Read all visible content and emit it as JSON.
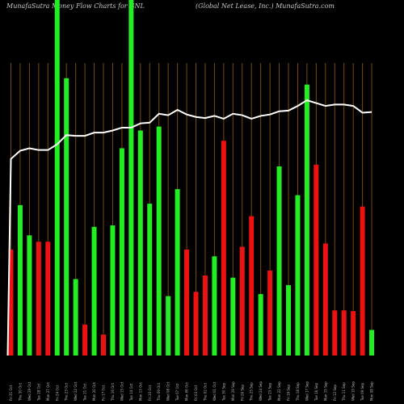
{
  "header": {
    "left_title": "MunafaSutra Money Flow Charts for GNL",
    "right_title": "(Global Net Lease, Inc.) MunafaSutra.com"
  },
  "colors": {
    "background": "#000000",
    "up": "#22ee22",
    "down": "#ee1111",
    "price_line": "#ffffff",
    "gridline": "#7a4a0a"
  },
  "chart_data": {
    "type": "bar",
    "title": "MunafaSutra Money Flow Charts for GNL",
    "ylim": [
      0,
      100
    ],
    "categories": [
      "Fri 31 Oct",
      "Thu 30 Oct",
      "Wed 29 Oct",
      "Tue 28 Oct",
      "Mon 27 Oct",
      "Fri 24 Oct",
      "Thu 23 Oct",
      "Wed 22 Oct",
      "Tue 21 Oct",
      "Mon 20 Oct",
      "Fri 17 Oct",
      "Thu 16 Oct",
      "Wed 15 Oct",
      "Tue 14 Oct",
      "Mon 13 Oct",
      "Fri 10 Oct",
      "Thu 09 Oct",
      "Wed 08 Oct",
      "Tue 07 Oct",
      "Mon 06 Oct",
      "Fri 03 Oct",
      "Thu 02 Oct",
      "Wed 01 Oct",
      "Tue 30 Sep",
      "Mon 29 Sep",
      "Fri 26 Sep",
      "Thu 25 Sep",
      "Wed 24 Sep",
      "Tue 23 Sep",
      "Mon 22 Sep",
      "Fri 19 Sep",
      "Thu 18 Sep",
      "Wed 17 Sep",
      "Tue 16 Sep",
      "Mon 15 Sep",
      "Fri 12 Sep",
      "Thu 11 Sep",
      "Wed 10 Sep",
      "Tue 09 Sep",
      "Mon 08 Sep"
    ],
    "bars": [
      {
        "value": 29.8,
        "color": "down"
      },
      {
        "value": 42.3,
        "color": "up"
      },
      {
        "value": 33.8,
        "color": "up"
      },
      {
        "value": 32.0,
        "color": "down"
      },
      {
        "value": 32.0,
        "color": "down"
      },
      {
        "value": 100.0,
        "color": "up"
      },
      {
        "value": 78.0,
        "color": "up"
      },
      {
        "value": 21.5,
        "color": "up"
      },
      {
        "value": 8.7,
        "color": "down"
      },
      {
        "value": 36.2,
        "color": "up"
      },
      {
        "value": 5.9,
        "color": "down"
      },
      {
        "value": 36.6,
        "color": "up"
      },
      {
        "value": 58.3,
        "color": "up"
      },
      {
        "value": 100.0,
        "color": "up"
      },
      {
        "value": 63.3,
        "color": "up"
      },
      {
        "value": 42.7,
        "color": "up"
      },
      {
        "value": 64.4,
        "color": "up"
      },
      {
        "value": 16.7,
        "color": "up"
      },
      {
        "value": 46.8,
        "color": "up"
      },
      {
        "value": 29.8,
        "color": "down"
      },
      {
        "value": 17.9,
        "color": "down"
      },
      {
        "value": 22.5,
        "color": "down"
      },
      {
        "value": 27.9,
        "color": "up"
      },
      {
        "value": 60.4,
        "color": "down"
      },
      {
        "value": 21.9,
        "color": "up"
      },
      {
        "value": 30.6,
        "color": "down"
      },
      {
        "value": 39.2,
        "color": "down"
      },
      {
        "value": 17.3,
        "color": "up"
      },
      {
        "value": 23.9,
        "color": "down"
      },
      {
        "value": 53.2,
        "color": "up"
      },
      {
        "value": 19.8,
        "color": "up"
      },
      {
        "value": 45.1,
        "color": "up"
      },
      {
        "value": 76.2,
        "color": "up"
      },
      {
        "value": 53.7,
        "color": "down"
      },
      {
        "value": 31.5,
        "color": "down"
      },
      {
        "value": 12.7,
        "color": "down"
      },
      {
        "value": 12.7,
        "color": "down"
      },
      {
        "value": 12.5,
        "color": "down"
      },
      {
        "value": 41.9,
        "color": "down"
      },
      {
        "value": 7.2,
        "color": "up"
      }
    ],
    "price_line": [
      55.3,
      57.6,
      58.3,
      57.8,
      57.8,
      59.4,
      62.0,
      61.8,
      61.8,
      62.7,
      62.7,
      63.3,
      64.1,
      64.1,
      65.3,
      65.5,
      68.0,
      67.6,
      69.1,
      67.8,
      67.1,
      66.8,
      67.4,
      66.6,
      68.0,
      67.6,
      66.6,
      67.4,
      67.8,
      68.7,
      68.9,
      70.2,
      71.8,
      71.0,
      70.2,
      70.6,
      70.6,
      70.2,
      68.3,
      68.5
    ]
  }
}
